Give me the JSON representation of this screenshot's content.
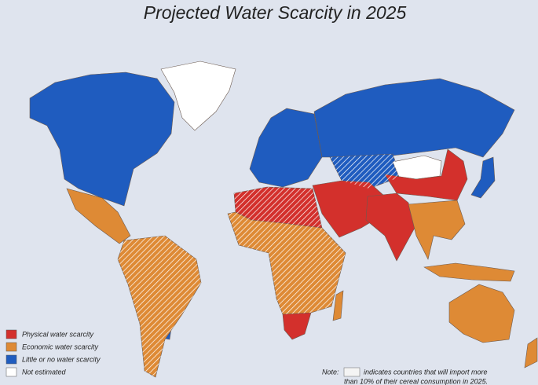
{
  "title": "Projected Water Scarcity in 2025",
  "legend": [
    {
      "label": "Physical water scarcity",
      "color": "#d3302c"
    },
    {
      "label": "Economic water scarcity",
      "color": "#de8a35"
    },
    {
      "label": "Little or no water scarcity",
      "color": "#1f5cbf"
    },
    {
      "label": "Not estimated",
      "color": "#ffffff"
    }
  ],
  "note": {
    "label": "Note:",
    "lines": [
      "indicates countries that will import more",
      "than 10% of their cereal consumption in 2025."
    ]
  }
}
